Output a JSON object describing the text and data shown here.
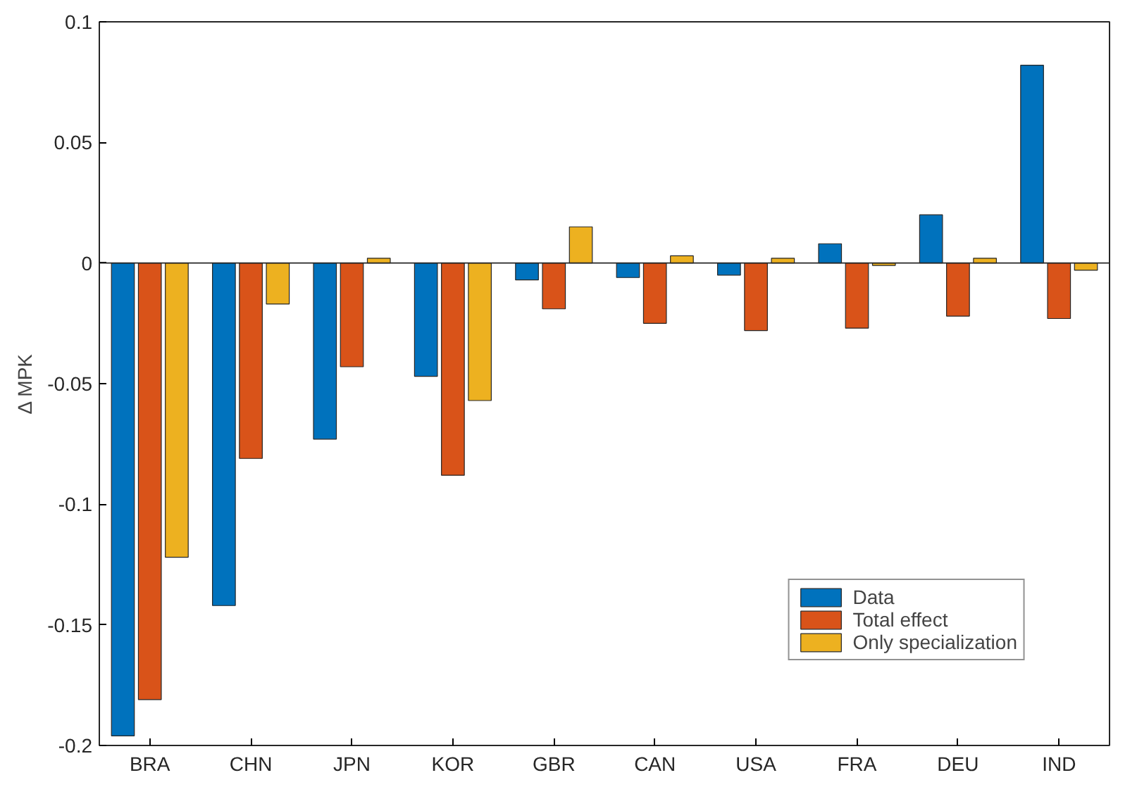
{
  "chart_data": {
    "type": "bar",
    "ylabel": "Δ MPK",
    "categories": [
      "BRA",
      "CHN",
      "JPN",
      "KOR",
      "GBR",
      "CAN",
      "USA",
      "FRA",
      "DEU",
      "IND"
    ],
    "series": [
      {
        "name": "Data",
        "color": "#0072bd",
        "values": [
          -0.196,
          -0.142,
          -0.073,
          -0.047,
          -0.007,
          -0.006,
          -0.005,
          0.008,
          0.02,
          0.082
        ]
      },
      {
        "name": "Total effect",
        "color": "#d95319",
        "values": [
          -0.181,
          -0.081,
          -0.043,
          -0.088,
          -0.019,
          -0.025,
          -0.028,
          -0.027,
          -0.022,
          -0.023
        ]
      },
      {
        "name": "Only specialization",
        "color": "#edb120",
        "values": [
          -0.122,
          -0.017,
          0.002,
          -0.057,
          0.015,
          0.003,
          0.002,
          -0.001,
          0.002,
          -0.003
        ]
      }
    ],
    "ylim": [
      -0.2,
      0.1
    ],
    "yticks": [
      -0.2,
      -0.15,
      -0.1,
      -0.05,
      0,
      0.05,
      0.1
    ],
    "ref_lines": [
      {
        "axis": "y",
        "value": 0,
        "color": "#262626"
      }
    ],
    "grid": false,
    "legend": "bottom right"
  }
}
